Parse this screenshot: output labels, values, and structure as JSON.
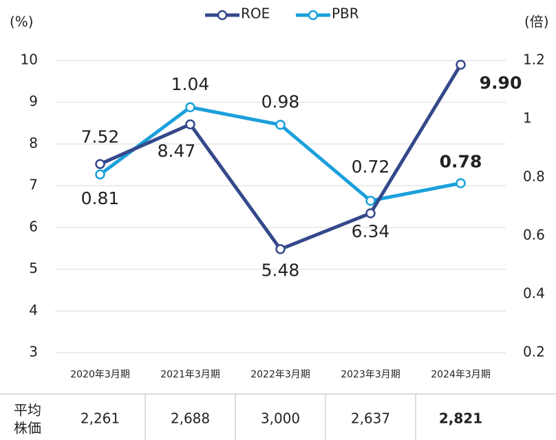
{
  "chart_data": {
    "type": "line",
    "y_label": "(%)",
    "y2_label": "(倍)",
    "categories": [
      "2020年3月期",
      "2021年3月期",
      "2022年3月期",
      "2023年3月期",
      "2024年3月期"
    ],
    "series": [
      {
        "name": "ROE",
        "color": "#34498b",
        "values": [
          7.52,
          8.47,
          5.48,
          6.34,
          9.9
        ],
        "value_labels": [
          "7.52",
          "8.47",
          "5.48",
          "6.34",
          "9.90"
        ]
      },
      {
        "name": "PBR",
        "color": "#1aa0dc",
        "axis": "y2",
        "values": [
          0.81,
          1.04,
          0.98,
          0.72,
          0.78
        ]
      }
    ],
    "ylim": [
      3,
      10
    ],
    "yticks": [
      3,
      4,
      5,
      6,
      7,
      8,
      9,
      10
    ],
    "y2lim": [
      0.2,
      1.2
    ],
    "y2ticks": [
      0.2,
      0.4,
      0.6,
      0.8,
      1,
      1.2
    ],
    "grid": true
  },
  "table": {
    "header": "平均株価",
    "values": [
      "2,261",
      "2,688",
      "3,000",
      "2,637",
      "2,821"
    ]
  }
}
